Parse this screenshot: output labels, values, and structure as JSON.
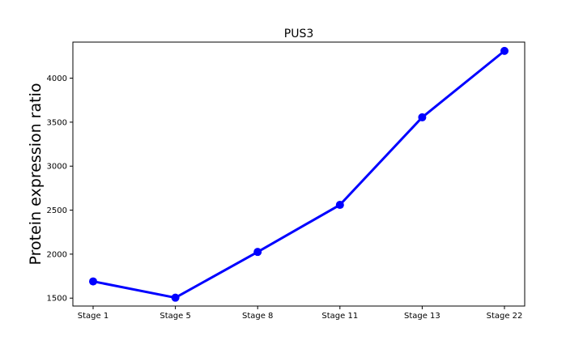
{
  "chart_data": {
    "type": "line",
    "title": "PUS3",
    "xlabel": "",
    "ylabel": "Protein expression ratio",
    "categories": [
      "Stage 1",
      "Stage 5",
      "Stage 8",
      "Stage 11",
      "Stage 13",
      "Stage 22"
    ],
    "series": [
      {
        "values": [
          1690,
          1505,
          2025,
          2560,
          3555,
          4310
        ],
        "color": "#0000ff"
      }
    ],
    "yticks": [
      1500,
      2000,
      2500,
      3000,
      3500,
      4000
    ],
    "ylim": [
      1410,
      4410
    ],
    "grid": false,
    "legend": "none"
  }
}
